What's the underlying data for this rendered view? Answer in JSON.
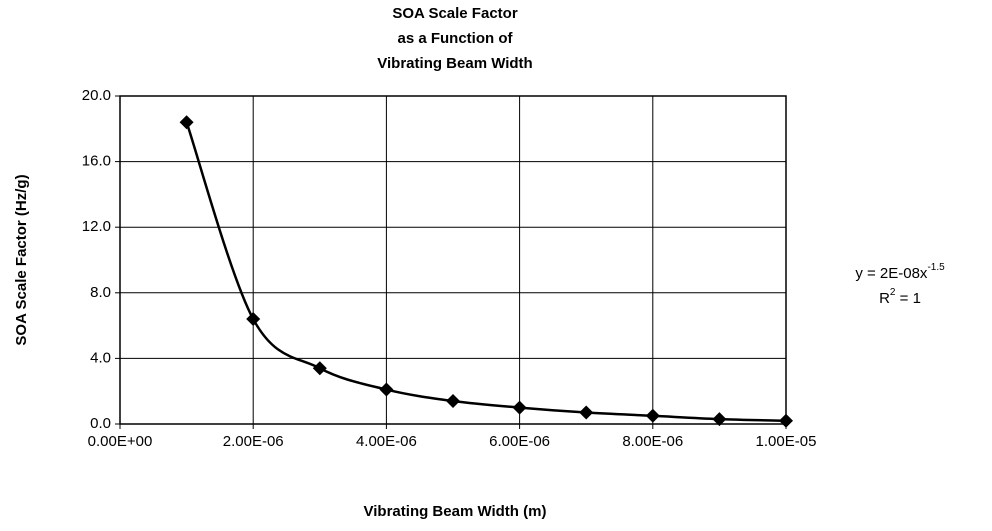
{
  "chart_data": {
    "type": "scatter",
    "title": [
      "SOA Scale Factor",
      "as a Function of",
      "Vibrating Beam Width"
    ],
    "x_label": "Vibrating Beam Width (m)",
    "y_label": "SOA Scale Factor (Hz/g)",
    "annotation_lines": [
      [
        "y = 2E-08x",
        "-1.5"
      ],
      [
        "R",
        "2",
        " = 1"
      ]
    ],
    "x": [
      1e-06,
      2e-06,
      3e-06,
      4e-06,
      5e-06,
      6e-06,
      7e-06,
      8e-06,
      9e-06,
      1e-05
    ],
    "values": [
      18.4,
      6.4,
      3.4,
      2.1,
      1.4,
      1.0,
      0.7,
      0.5,
      0.3,
      0.2
    ],
    "color": "#000000",
    "xlim": [
      0,
      1e-05
    ],
    "ylim": [
      0,
      20
    ],
    "xticks": [
      {
        "value": 0,
        "label": "0.00E+00"
      },
      {
        "value": 2e-06,
        "label": "2.00E-06"
      },
      {
        "value": 4e-06,
        "label": "4.00E-06"
      },
      {
        "value": 6e-06,
        "label": "6.00E-06"
      },
      {
        "value": 8e-06,
        "label": "8.00E-06"
      },
      {
        "value": 1e-05,
        "label": "1.00E-05"
      }
    ],
    "yticks": [
      {
        "value": 0,
        "label": "0.0"
      },
      {
        "value": 4,
        "label": "4.0"
      },
      {
        "value": 8,
        "label": "8.0"
      },
      {
        "value": 12,
        "label": "12.0"
      },
      {
        "value": 16,
        "label": "16.0"
      },
      {
        "value": 20,
        "label": "20.0"
      }
    ],
    "grid": true
  }
}
